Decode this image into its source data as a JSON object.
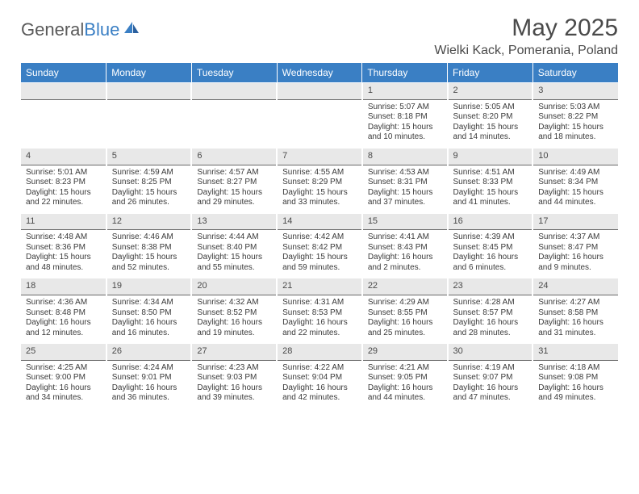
{
  "logo": {
    "part1": "General",
    "part2": "Blue"
  },
  "title": "May 2025",
  "location": "Wielki Kack, Pomerania, Poland",
  "colors": {
    "header_bg": "#3a7fc4",
    "header_text": "#ffffff",
    "daynum_bg": "#e8e8e8",
    "daynum_border": "#6a6a6a",
    "text": "#3a3a3a",
    "title_text": "#4a4a4a",
    "logo_gray": "#5a5a5a",
    "logo_blue": "#3a7fc4",
    "page_bg": "#ffffff"
  },
  "dayNames": [
    "Sunday",
    "Monday",
    "Tuesday",
    "Wednesday",
    "Thursday",
    "Friday",
    "Saturday"
  ],
  "grid": {
    "startOffset": 4,
    "daysInMonth": 31
  },
  "days": {
    "1": {
      "sunrise": "5:07 AM",
      "sunset": "8:18 PM",
      "daylight": "15 hours and 10 minutes."
    },
    "2": {
      "sunrise": "5:05 AM",
      "sunset": "8:20 PM",
      "daylight": "15 hours and 14 minutes."
    },
    "3": {
      "sunrise": "5:03 AM",
      "sunset": "8:22 PM",
      "daylight": "15 hours and 18 minutes."
    },
    "4": {
      "sunrise": "5:01 AM",
      "sunset": "8:23 PM",
      "daylight": "15 hours and 22 minutes."
    },
    "5": {
      "sunrise": "4:59 AM",
      "sunset": "8:25 PM",
      "daylight": "15 hours and 26 minutes."
    },
    "6": {
      "sunrise": "4:57 AM",
      "sunset": "8:27 PM",
      "daylight": "15 hours and 29 minutes."
    },
    "7": {
      "sunrise": "4:55 AM",
      "sunset": "8:29 PM",
      "daylight": "15 hours and 33 minutes."
    },
    "8": {
      "sunrise": "4:53 AM",
      "sunset": "8:31 PM",
      "daylight": "15 hours and 37 minutes."
    },
    "9": {
      "sunrise": "4:51 AM",
      "sunset": "8:33 PM",
      "daylight": "15 hours and 41 minutes."
    },
    "10": {
      "sunrise": "4:49 AM",
      "sunset": "8:34 PM",
      "daylight": "15 hours and 44 minutes."
    },
    "11": {
      "sunrise": "4:48 AM",
      "sunset": "8:36 PM",
      "daylight": "15 hours and 48 minutes."
    },
    "12": {
      "sunrise": "4:46 AM",
      "sunset": "8:38 PM",
      "daylight": "15 hours and 52 minutes."
    },
    "13": {
      "sunrise": "4:44 AM",
      "sunset": "8:40 PM",
      "daylight": "15 hours and 55 minutes."
    },
    "14": {
      "sunrise": "4:42 AM",
      "sunset": "8:42 PM",
      "daylight": "15 hours and 59 minutes."
    },
    "15": {
      "sunrise": "4:41 AM",
      "sunset": "8:43 PM",
      "daylight": "16 hours and 2 minutes."
    },
    "16": {
      "sunrise": "4:39 AM",
      "sunset": "8:45 PM",
      "daylight": "16 hours and 6 minutes."
    },
    "17": {
      "sunrise": "4:37 AM",
      "sunset": "8:47 PM",
      "daylight": "16 hours and 9 minutes."
    },
    "18": {
      "sunrise": "4:36 AM",
      "sunset": "8:48 PM",
      "daylight": "16 hours and 12 minutes."
    },
    "19": {
      "sunrise": "4:34 AM",
      "sunset": "8:50 PM",
      "daylight": "16 hours and 16 minutes."
    },
    "20": {
      "sunrise": "4:32 AM",
      "sunset": "8:52 PM",
      "daylight": "16 hours and 19 minutes."
    },
    "21": {
      "sunrise": "4:31 AM",
      "sunset": "8:53 PM",
      "daylight": "16 hours and 22 minutes."
    },
    "22": {
      "sunrise": "4:29 AM",
      "sunset": "8:55 PM",
      "daylight": "16 hours and 25 minutes."
    },
    "23": {
      "sunrise": "4:28 AM",
      "sunset": "8:57 PM",
      "daylight": "16 hours and 28 minutes."
    },
    "24": {
      "sunrise": "4:27 AM",
      "sunset": "8:58 PM",
      "daylight": "16 hours and 31 minutes."
    },
    "25": {
      "sunrise": "4:25 AM",
      "sunset": "9:00 PM",
      "daylight": "16 hours and 34 minutes."
    },
    "26": {
      "sunrise": "4:24 AM",
      "sunset": "9:01 PM",
      "daylight": "16 hours and 36 minutes."
    },
    "27": {
      "sunrise": "4:23 AM",
      "sunset": "9:03 PM",
      "daylight": "16 hours and 39 minutes."
    },
    "28": {
      "sunrise": "4:22 AM",
      "sunset": "9:04 PM",
      "daylight": "16 hours and 42 minutes."
    },
    "29": {
      "sunrise": "4:21 AM",
      "sunset": "9:05 PM",
      "daylight": "16 hours and 44 minutes."
    },
    "30": {
      "sunrise": "4:19 AM",
      "sunset": "9:07 PM",
      "daylight": "16 hours and 47 minutes."
    },
    "31": {
      "sunrise": "4:18 AM",
      "sunset": "9:08 PM",
      "daylight": "16 hours and 49 minutes."
    }
  },
  "labels": {
    "sunrise": "Sunrise: ",
    "sunset": "Sunset: ",
    "daylight": "Daylight: "
  }
}
